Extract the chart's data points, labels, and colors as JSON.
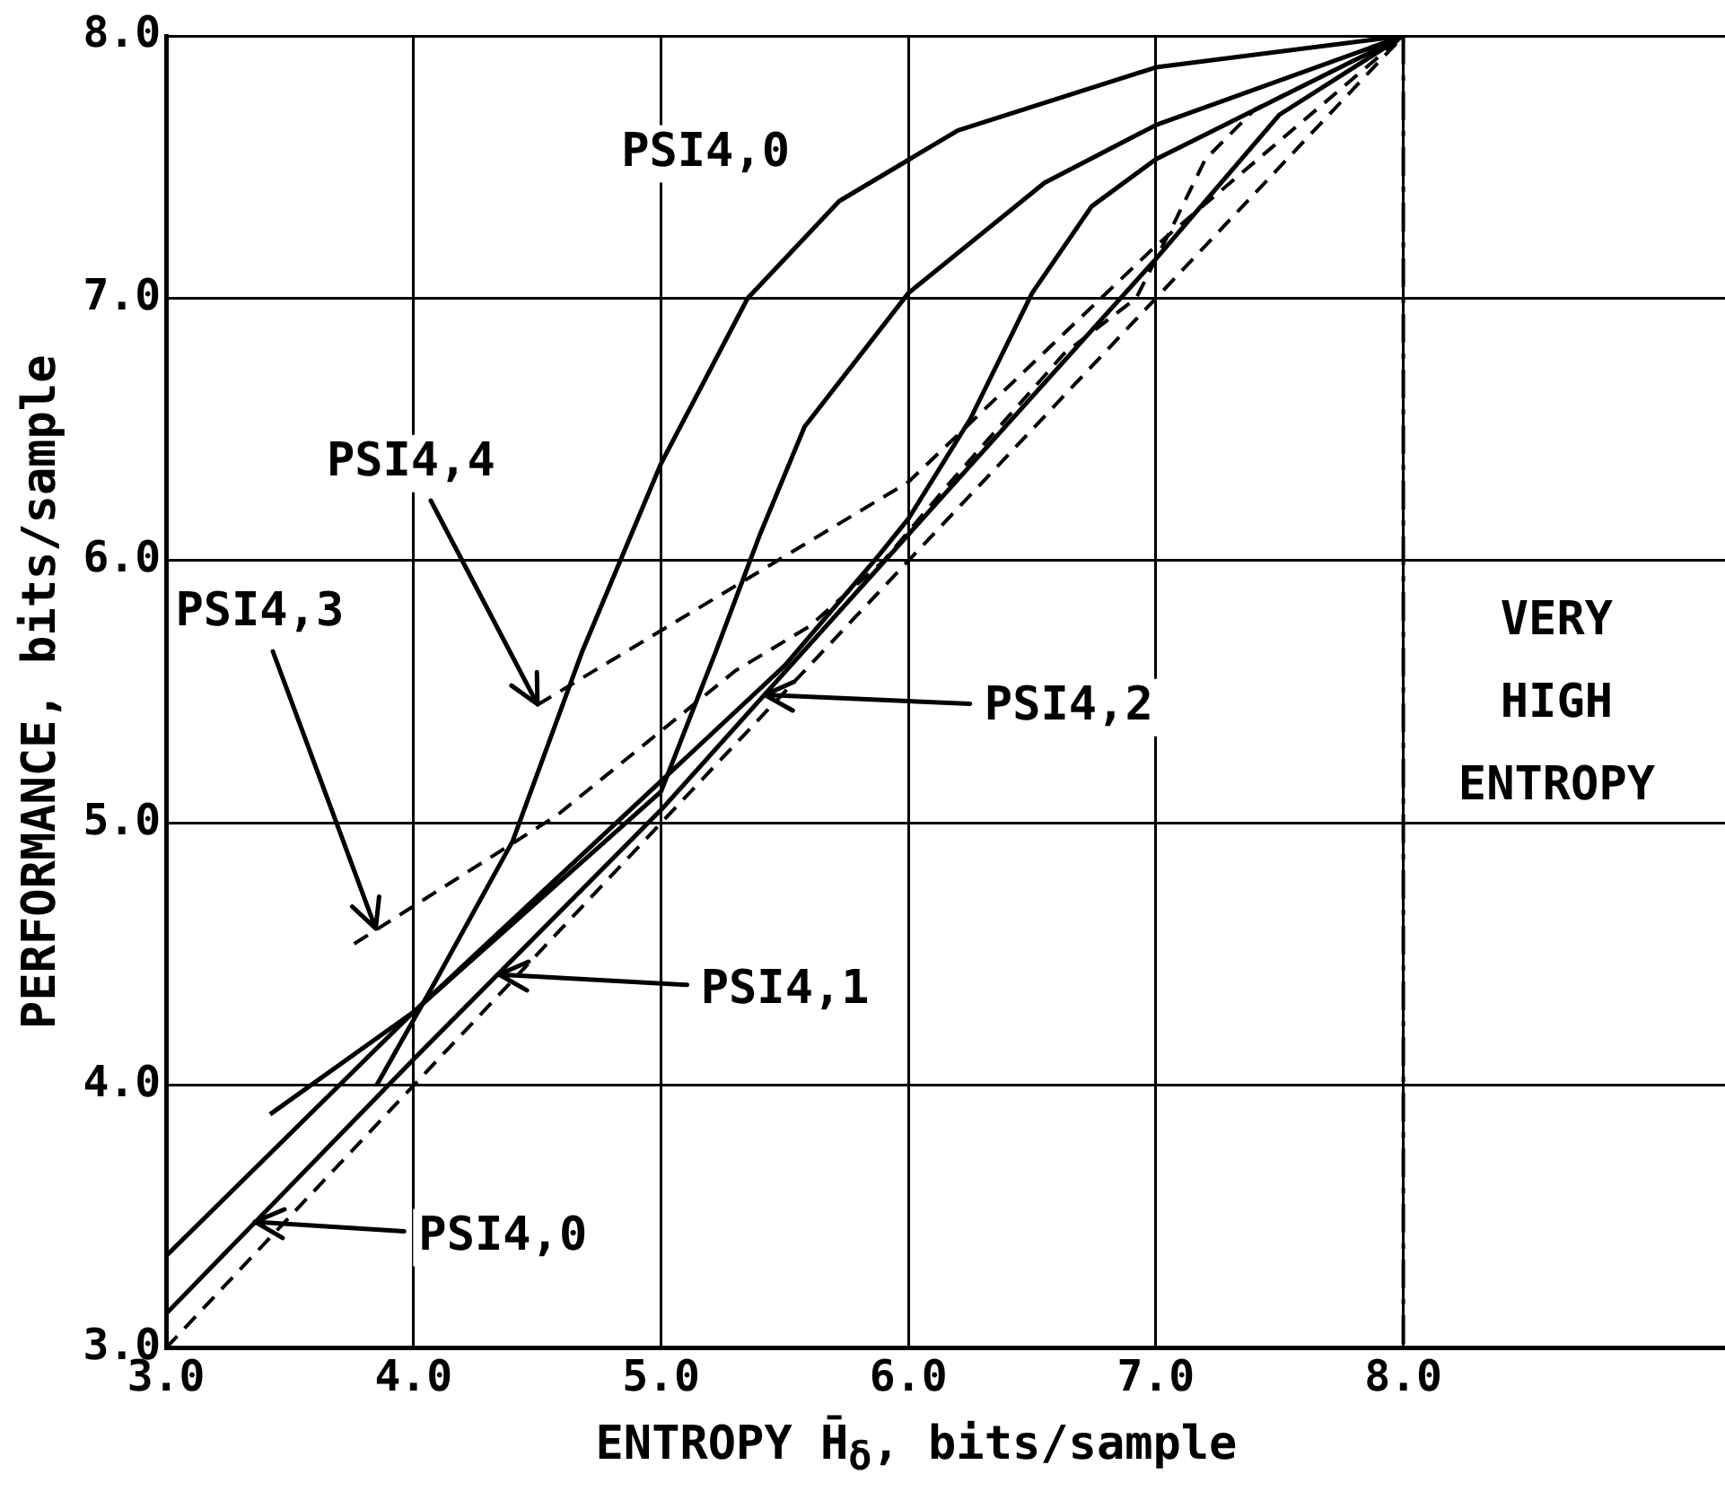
{
  "chart_data": {
    "type": "line",
    "xlabel": "ENTROPY  H̄$_{δ}$, bits/sample",
    "ylabel": "PERFORMANCE, bits/sample",
    "xlim": [
      3,
      9.3
    ],
    "xticks": [
      {
        "value": 3,
        "label": "3.0"
      },
      {
        "value": 4,
        "label": "4.0"
      },
      {
        "value": 5,
        "label": "5.0"
      },
      {
        "value": 6,
        "label": "6.0"
      },
      {
        "value": 7,
        "label": "7.0"
      },
      {
        "value": 8,
        "label": "8.0"
      }
    ],
    "ylim": [
      3,
      8
    ],
    "yticks": [
      {
        "value": 3,
        "label": "3.0"
      },
      {
        "value": 4,
        "label": "4.0"
      },
      {
        "value": 5,
        "label": "5.0"
      },
      {
        "value": 6,
        "label": "6.0"
      },
      {
        "value": 7,
        "label": "7.0"
      },
      {
        "value": 8,
        "label": "8.0"
      }
    ],
    "grid": true,
    "legend": false,
    "marker": "none",
    "line_style": "solid",
    "series": [
      {
        "color": "#000000",
        "x": [
          3.85,
          4.09,
          4.4,
          4.68,
          5.0,
          5.35,
          5.72,
          6.2,
          7.0,
          8.0
        ],
        "values": [
          4.0,
          4.4,
          4.93,
          5.65,
          6.37,
          7.0,
          7.37,
          7.64,
          7.88,
          8.0
        ]
      },
      {
        "color": "#000000",
        "x": [
          3.42,
          4.0,
          4.5,
          5.0,
          5.22,
          5.4,
          5.58,
          6.0,
          6.55,
          7.0,
          8.0
        ],
        "values": [
          3.89,
          4.28,
          4.7,
          5.12,
          5.65,
          6.1,
          6.51,
          7.02,
          7.44,
          7.66,
          8.0
        ]
      },
      {
        "color": "#000000",
        "x": [
          3.0,
          4.0,
          5.0,
          5.5,
          5.88,
          6.0,
          6.25,
          6.5,
          6.74,
          7.0,
          8.0
        ],
        "values": [
          3.35,
          4.28,
          5.16,
          5.6,
          6.02,
          6.16,
          6.54,
          7.02,
          7.35,
          7.53,
          8.0
        ]
      },
      {
        "color": "#000000",
        "x": [
          3.0,
          4.0,
          5.0,
          6.0,
          7.0,
          7.5,
          8.0
        ],
        "values": [
          3.13,
          4.1,
          5.05,
          6.1,
          7.15,
          7.7,
          8.0
        ]
      },
      {
        "color": "#000000",
        "line_style": "dashed",
        "x": [
          3.76,
          4.58,
          5.3,
          5.6,
          5.9,
          6.17,
          6.63,
          6.92,
          7.07,
          7.2,
          7.4,
          8.0
        ],
        "values": [
          4.54,
          5.03,
          5.58,
          5.75,
          6.0,
          6.3,
          6.79,
          7.0,
          7.28,
          7.53,
          7.72,
          8.0
        ]
      },
      {
        "color": "#000000",
        "line_style": "dashed",
        "x": [
          4.5,
          6.0,
          7.0,
          8.0
        ],
        "values": [
          5.45,
          6.3,
          7.2,
          8.0
        ]
      },
      {
        "color": "#000000",
        "line_style": "dashed",
        "x": [
          3.0,
          8.0
        ],
        "values": [
          3.0,
          8.0
        ]
      }
    ],
    "ref_lines": [
      {
        "axis": "x",
        "value": 8,
        "label": null,
        "line_style": "dashed",
        "color": "#000000"
      }
    ],
    "annotations": [
      "PSI4,0",
      {
        "text": "PSI4,4",
        "x": 4.5,
        "y": 5.45
      },
      {
        "text": "PSI4,3",
        "x": 3.85,
        "y": 4.6
      },
      "PSI4,2",
      "PSI4,1",
      "PSI4,0",
      "VERY HIGH ENTROPY"
    ]
  }
}
